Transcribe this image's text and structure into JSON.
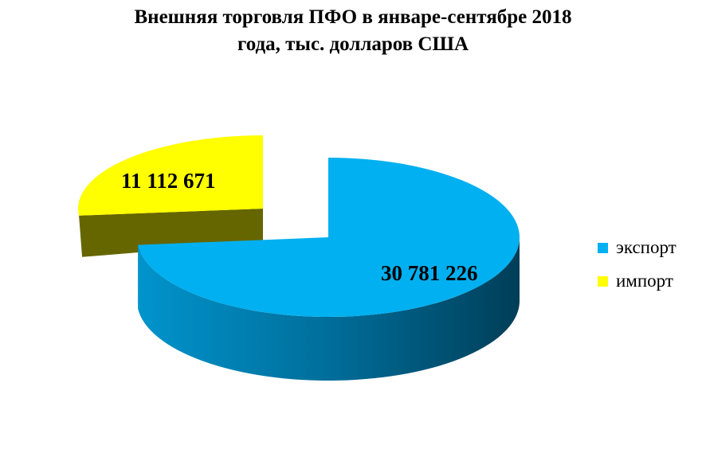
{
  "chart_data": {
    "type": "pie",
    "style": "3d-exploded",
    "title_line1": "Внешняя торговля ПФО в январе-сентябре 2018",
    "title_line2": "года, тыс. долларов США",
    "slices": [
      {
        "name": "экспорт",
        "value": 30781226,
        "label": "30 781 226",
        "color": "#00B0F0"
      },
      {
        "name": "импорт",
        "value": 11112671,
        "label": "11 112 671",
        "color": "#FFFF00"
      }
    ],
    "legend_position": "right"
  }
}
